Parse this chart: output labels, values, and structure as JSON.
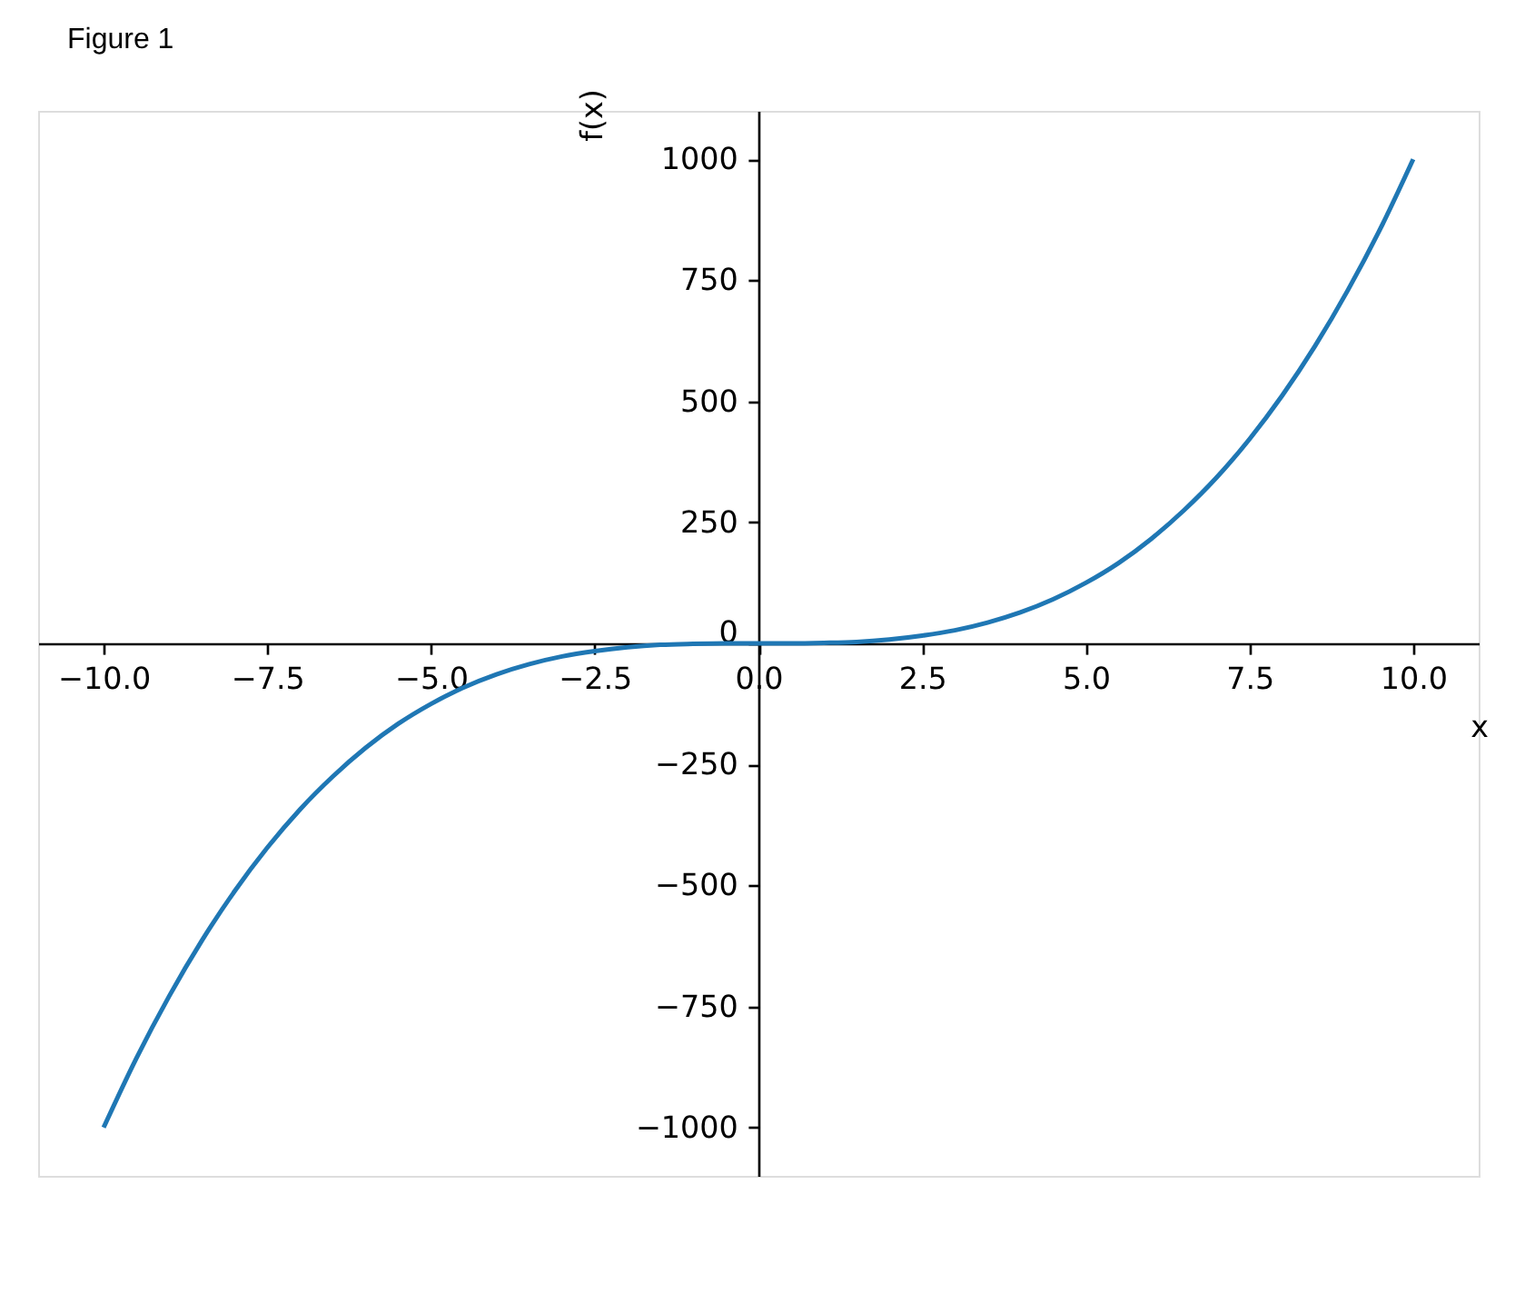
{
  "chart_data": {
    "type": "line",
    "title": "Figure 1",
    "xlabel": "x",
    "ylabel": "f(x)",
    "x": [
      -10,
      -9.5,
      -9,
      -8.5,
      -8,
      -7.5,
      -7,
      -6.5,
      -6,
      -5.5,
      -5,
      -4.5,
      -4,
      -3.5,
      -3,
      -2.5,
      -2,
      -1.5,
      -1,
      -0.5,
      0,
      0.5,
      1,
      1.5,
      2,
      2.5,
      3,
      3.5,
      4,
      4.5,
      5,
      5.5,
      6,
      6.5,
      7,
      7.5,
      8,
      8.5,
      9,
      9.5,
      10
    ],
    "series": [
      {
        "color": "#1f77b4",
        "values": [
          -1000,
          -857,
          -729,
          -614,
          -512,
          -422,
          -343,
          -275,
          -216,
          -166,
          -125,
          -91,
          -64,
          -43,
          -27,
          -16,
          -8,
          -3,
          -1,
          0,
          0,
          0,
          1,
          3,
          8,
          16,
          27,
          43,
          64,
          91,
          125,
          166,
          216,
          275,
          343,
          422,
          512,
          614,
          729,
          857,
          1000
        ]
      }
    ],
    "xlim": [
      -11,
      11
    ],
    "ylim": [
      -1100,
      1100
    ],
    "xticks": [
      {
        "value": -10,
        "label": "−10.0"
      },
      {
        "value": -7.5,
        "label": "−7.5"
      },
      {
        "value": -5,
        "label": "−5.0"
      },
      {
        "value": -2.5,
        "label": "−2.5"
      },
      {
        "value": 0,
        "label": "0.0"
      },
      2.5,
      {
        "value": 5,
        "label": "5.0"
      },
      7.5,
      {
        "value": 10,
        "label": "10.0"
      }
    ],
    "yticks": [
      {
        "value": -1000,
        "label": "−1000"
      },
      {
        "value": -750,
        "label": "−750"
      },
      {
        "value": -500,
        "label": "−500"
      },
      {
        "value": -250,
        "label": "−250"
      },
      0,
      250,
      500,
      750,
      1000
    ],
    "line_style": "solid"
  }
}
